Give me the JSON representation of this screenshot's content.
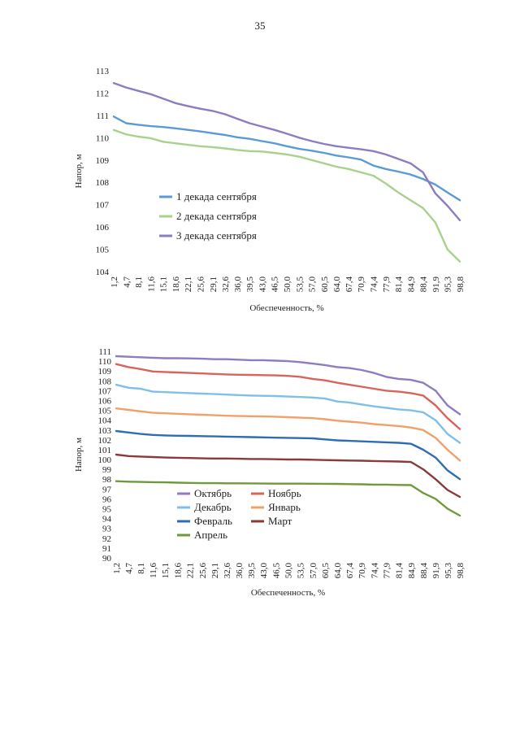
{
  "page": {
    "number": "35"
  },
  "chart_data": [
    {
      "type": "line",
      "xlabel": "Обеспеченность, %",
      "ylabel": "Напор, м",
      "ylim": [
        104,
        113
      ],
      "yticks": [
        "104",
        "105",
        "106",
        "107",
        "108",
        "109",
        "110",
        "111",
        "112",
        "113"
      ],
      "xticks": [
        "1,2",
        "4,7",
        "8,1",
        "11,6",
        "15,1",
        "18,6",
        "22,1",
        "25,6",
        "29,1",
        "32,6",
        "36,0",
        "39,5",
        "43,0",
        "46,5",
        "50,0",
        "53,5",
        "57,0",
        "60,5",
        "64,0",
        "67,4",
        "70,9",
        "74,4",
        "77,9",
        "81,4",
        "84,9",
        "88,4",
        "91,9",
        "95,3",
        "98,8"
      ],
      "x": [
        1.2,
        4.7,
        8.1,
        11.6,
        15.1,
        18.6,
        22.1,
        25.6,
        29.1,
        32.6,
        36.0,
        39.5,
        43.0,
        46.5,
        50.0,
        53.5,
        57.0,
        60.5,
        64.0,
        67.4,
        70.9,
        74.4,
        77.9,
        81.4,
        84.9,
        88.4,
        91.9,
        95.3,
        98.8
      ],
      "series": [
        {
          "name": "1 декада сентября",
          "color": "#5b9bd5",
          "values": [
            110.95,
            110.65,
            110.58,
            110.52,
            110.48,
            110.42,
            110.35,
            110.28,
            110.2,
            110.12,
            110.02,
            109.95,
            109.85,
            109.75,
            109.62,
            109.5,
            109.42,
            109.32,
            109.2,
            109.12,
            109.02,
            108.75,
            108.6,
            108.48,
            108.35,
            108.15,
            107.9,
            107.55,
            107.2
          ]
        },
        {
          "name": "2 декада сентября",
          "color": "#a9d18e",
          "values": [
            110.35,
            110.15,
            110.05,
            109.98,
            109.82,
            109.75,
            109.68,
            109.62,
            109.58,
            109.52,
            109.45,
            109.4,
            109.38,
            109.32,
            109.25,
            109.15,
            109.0,
            108.85,
            108.7,
            108.6,
            108.45,
            108.3,
            107.95,
            107.55,
            107.2,
            106.85,
            106.2,
            105.0,
            104.45
          ]
        },
        {
          "name": "3 декада сентября",
          "color": "#8e7cc3",
          "values": [
            112.45,
            112.25,
            112.1,
            111.95,
            111.75,
            111.55,
            111.42,
            111.3,
            111.2,
            111.05,
            110.85,
            110.65,
            110.5,
            110.35,
            110.18,
            110.0,
            109.85,
            109.72,
            109.62,
            109.55,
            109.48,
            109.4,
            109.25,
            109.05,
            108.85,
            108.45,
            107.5,
            106.95,
            106.3
          ]
        }
      ]
    },
    {
      "type": "line",
      "xlabel": "Обеспеченность, %",
      "ylabel": "Напор, м",
      "ylim": [
        90,
        111
      ],
      "yticks": [
        "90",
        "91",
        "92",
        "93",
        "94",
        "95",
        "96",
        "97",
        "98",
        "99",
        "100",
        "101",
        "102",
        "103",
        "104",
        "105",
        "106",
        "107",
        "108",
        "109",
        "110",
        "111"
      ],
      "xticks": [
        "1,2",
        "4,7",
        "8,1",
        "11,6",
        "15,1",
        "18,6",
        "22,1",
        "25,6",
        "29,1",
        "32,6",
        "36,0",
        "39,5",
        "43,0",
        "46,5",
        "50,0",
        "53,5",
        "57,0",
        "60,5",
        "64,0",
        "67,4",
        "70,9",
        "74,4",
        "77,9",
        "81,4",
        "84,9",
        "88,4",
        "91,9",
        "95,3",
        "98,8"
      ],
      "x": [
        1.2,
        4.7,
        8.1,
        11.6,
        15.1,
        18.6,
        22.1,
        25.6,
        29.1,
        32.6,
        36.0,
        39.5,
        43.0,
        46.5,
        50.0,
        53.5,
        57.0,
        60.5,
        64.0,
        67.4,
        70.9,
        74.4,
        77.9,
        81.4,
        84.9,
        88.4,
        91.9,
        95.3,
        98.8
      ],
      "series": [
        {
          "name": "Октябрь",
          "color": "#8e7cc3",
          "values": [
            110.5,
            110.45,
            110.4,
            110.35,
            110.3,
            110.3,
            110.28,
            110.25,
            110.2,
            110.2,
            110.15,
            110.1,
            110.1,
            110.05,
            110.0,
            109.9,
            109.75,
            109.6,
            109.4,
            109.3,
            109.1,
            108.8,
            108.4,
            108.2,
            108.1,
            107.8,
            107.0,
            105.5,
            104.6
          ]
        },
        {
          "name": "Ноябрь",
          "color": "#d9645b",
          "values": [
            109.7,
            109.4,
            109.2,
            108.95,
            108.9,
            108.85,
            108.8,
            108.75,
            108.7,
            108.65,
            108.62,
            108.6,
            108.58,
            108.55,
            108.5,
            108.4,
            108.2,
            108.05,
            107.8,
            107.6,
            107.4,
            107.2,
            107.0,
            106.9,
            106.75,
            106.5,
            105.5,
            104.2,
            103.1
          ]
        },
        {
          "name": "Декабрь",
          "color": "#7fbfe8",
          "values": [
            107.6,
            107.3,
            107.2,
            106.9,
            106.85,
            106.8,
            106.75,
            106.7,
            106.65,
            106.6,
            106.55,
            106.5,
            106.48,
            106.45,
            106.4,
            106.35,
            106.3,
            106.2,
            105.9,
            105.8,
            105.6,
            105.4,
            105.25,
            105.1,
            105.0,
            104.8,
            104.0,
            102.6,
            101.7
          ]
        },
        {
          "name": "Январь",
          "color": "#f0a06b",
          "values": [
            105.2,
            105.05,
            104.9,
            104.75,
            104.7,
            104.65,
            104.6,
            104.55,
            104.5,
            104.45,
            104.42,
            104.4,
            104.38,
            104.35,
            104.3,
            104.25,
            104.2,
            104.1,
            103.95,
            103.85,
            103.75,
            103.6,
            103.5,
            103.4,
            103.25,
            103.0,
            102.2,
            101.0,
            99.9
          ]
        },
        {
          "name": "Февраль",
          "color": "#2e6db4",
          "values": [
            102.9,
            102.75,
            102.6,
            102.5,
            102.45,
            102.42,
            102.4,
            102.38,
            102.35,
            102.33,
            102.3,
            102.28,
            102.25,
            102.22,
            102.2,
            102.18,
            102.15,
            102.05,
            101.95,
            101.9,
            101.85,
            101.8,
            101.75,
            101.7,
            101.6,
            101.0,
            100.2,
            98.9,
            98.0
          ]
        },
        {
          "name": "Март",
          "color": "#8b3a3a",
          "values": [
            100.5,
            100.35,
            100.3,
            100.25,
            100.2,
            100.18,
            100.15,
            100.12,
            100.1,
            100.1,
            100.08,
            100.05,
            100.05,
            100.03,
            100.0,
            100.0,
            99.98,
            99.95,
            99.92,
            99.9,
            99.88,
            99.85,
            99.82,
            99.8,
            99.75,
            99.0,
            98.0,
            96.9,
            96.2
          ]
        },
        {
          "name": "Апрель",
          "color": "#6f9a3c",
          "values": [
            97.8,
            97.75,
            97.72,
            97.7,
            97.68,
            97.65,
            97.62,
            97.6,
            97.6,
            97.58,
            97.58,
            97.57,
            97.56,
            97.55,
            97.55,
            97.55,
            97.54,
            97.53,
            97.52,
            97.5,
            97.48,
            97.45,
            97.45,
            97.42,
            97.4,
            96.6,
            96.0,
            95.0,
            94.3
          ]
        }
      ]
    }
  ]
}
